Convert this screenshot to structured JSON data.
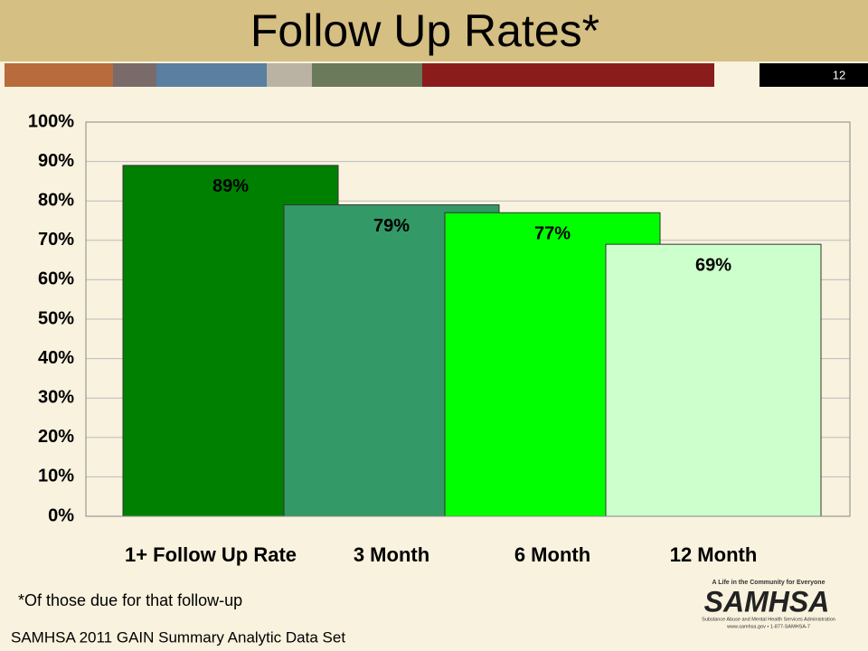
{
  "chart_data": {
    "type": "bar",
    "title": "Follow Up Rates*",
    "categories": [
      "1+ Follow Up Rate",
      "3 Month",
      "6 Month",
      "12 Month"
    ],
    "values": [
      89,
      79,
      77,
      69
    ],
    "value_labels": [
      "89%",
      "79%",
      "77%",
      "69%"
    ],
    "colors": [
      "#008000",
      "#339966",
      "#00ff00",
      "#ccffcc"
    ],
    "ylim": [
      0,
      100
    ],
    "yticks": [
      {
        "value": 0,
        "label": "0%"
      },
      {
        "value": 10,
        "label": "10%"
      },
      {
        "value": 20,
        "label": "20%"
      },
      {
        "value": 30,
        "label": "30%"
      },
      {
        "value": 40,
        "label": "40%"
      },
      {
        "value": 50,
        "label": "50%"
      },
      {
        "value": 60,
        "label": "60%"
      },
      {
        "value": 70,
        "label": "70%"
      },
      {
        "value": 80,
        "label": "80%"
      },
      {
        "value": 90,
        "label": "90%"
      },
      {
        "value": 100,
        "label": "100%"
      }
    ],
    "grid": true
  },
  "slide_number": "12",
  "footnote": "*Of those due for that follow-up",
  "source": "SAMHSA 2011 GAIN Summary Analytic Data Set",
  "logo": {
    "tagline": "A Life in the Community for Everyone",
    "name": "SAMHSA",
    "full_name": "Substance Abuse and Mental Health Services Administration",
    "contact": "www.samhsa.gov • 1-877-SAMHSA-7"
  }
}
